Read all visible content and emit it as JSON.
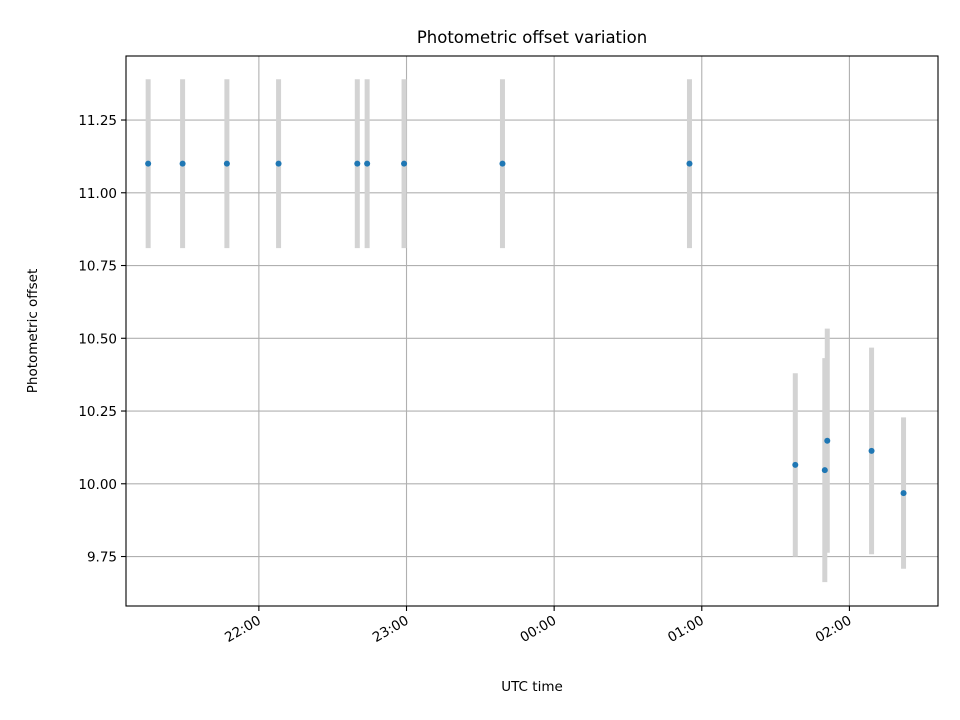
{
  "chart_data": {
    "type": "scatter",
    "title": "Photometric offset variation",
    "xlabel": "UTC time",
    "ylabel": "Photometric offset",
    "grid": true,
    "xticks": [
      "22:00",
      "23:00",
      "00:00",
      "01:00",
      "02:00"
    ],
    "yticks": [
      "9.75",
      "10.00",
      "10.25",
      "10.50",
      "10.75",
      "11.00",
      "11.25"
    ],
    "xlim": [
      "21:06",
      "02:36"
    ],
    "ylim": [
      9.58,
      11.47
    ],
    "colors": {
      "point": "#1f77b4",
      "errorbar": "#d3d3d3",
      "grid": "#b0b0b0"
    },
    "series": [
      {
        "points": [
          {
            "x": "21:15",
            "y": 11.1,
            "yerr_low": 0.29,
            "yerr_high": 0.29
          },
          {
            "x": "21:29",
            "y": 11.1,
            "yerr_low": 0.29,
            "yerr_high": 0.29
          },
          {
            "x": "21:47",
            "y": 11.1,
            "yerr_low": 0.29,
            "yerr_high": 0.29
          },
          {
            "x": "22:08",
            "y": 11.1,
            "yerr_low": 0.29,
            "yerr_high": 0.29
          },
          {
            "x": "22:40",
            "y": 11.1,
            "yerr_low": 0.29,
            "yerr_high": 0.29
          },
          {
            "x": "22:44",
            "y": 11.1,
            "yerr_low": 0.29,
            "yerr_high": 0.29
          },
          {
            "x": "22:59",
            "y": 11.1,
            "yerr_low": 0.29,
            "yerr_high": 0.29
          },
          {
            "x": "23:39",
            "y": 11.1,
            "yerr_low": 0.29,
            "yerr_high": 0.29
          },
          {
            "x": "00:55",
            "y": 11.1,
            "yerr_low": 0.29,
            "yerr_high": 0.29
          },
          {
            "x": "01:38",
            "y": 10.065,
            "yerr_low": 0.315,
            "yerr_high": 0.315
          },
          {
            "x": "01:50",
            "y": 10.047,
            "yerr_low": 0.385,
            "yerr_high": 0.385
          },
          {
            "x": "01:51",
            "y": 10.148,
            "yerr_low": 0.385,
            "yerr_high": 0.385
          },
          {
            "x": "02:09",
            "y": 10.113,
            "yerr_low": 0.355,
            "yerr_high": 0.355
          },
          {
            "x": "02:22",
            "y": 9.968,
            "yerr_low": 0.26,
            "yerr_high": 0.26
          }
        ]
      }
    ]
  }
}
